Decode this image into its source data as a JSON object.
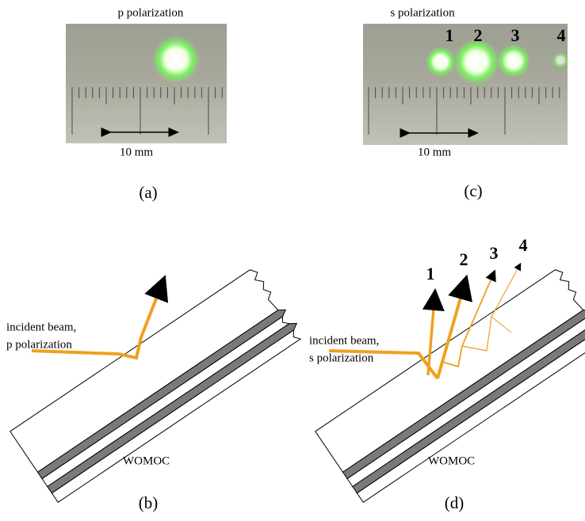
{
  "panels": [
    {
      "label": "(a)",
      "title": "p polarization",
      "scale": "10 mm"
    },
    {
      "label": "(c)",
      "title": "s polarization",
      "spots": [
        "1",
        "2",
        "3",
        "4"
      ],
      "scale": "10 mm"
    },
    {
      "label": "(b)",
      "beam_label": [
        "incident beam,",
        "p polarization"
      ],
      "element": "WOMOC"
    },
    {
      "label": "(d)",
      "beam_label": [
        "incident beam,",
        "s polarization"
      ],
      "element": "WOMOC",
      "beams": [
        "1",
        "2",
        "3",
        "4"
      ]
    }
  ]
}
